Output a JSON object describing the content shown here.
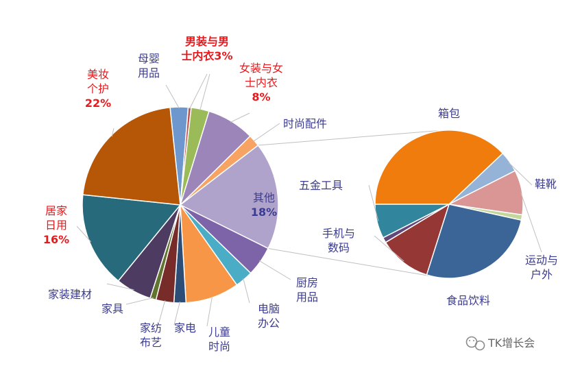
{
  "chart_data": {
    "type": "pie",
    "subtype": "pie-of-pie",
    "main": {
      "slices": [
        {
          "label": "母婴用品",
          "lines": [
            "母婴",
            "用品"
          ],
          "value": 3,
          "color": "#6e97cd"
        },
        {
          "label": "男装与男士内衣3%",
          "lines": [
            "男装与男",
            "士内衣3%"
          ],
          "value": 0.5,
          "color": "#c0504d",
          "highlight": true
        },
        {
          "label": "男装与男士内衣3%",
          "lines": [],
          "value": 3,
          "color": "#9bbb59",
          "highlight": true
        },
        {
          "label": "女装与女士内衣8%",
          "lines": [
            "女装与女",
            "士内衣",
            "8%"
          ],
          "value": 8,
          "color": "#9b85b9",
          "highlight": true
        },
        {
          "label": "时尚配件",
          "lines": [
            "时尚配件"
          ],
          "value": 2,
          "color": "#f7a364"
        },
        {
          "label": "其他18%",
          "lines": [
            "其他",
            "18%"
          ],
          "value": 18,
          "color": "#b0a3cb",
          "inside": true
        },
        {
          "label": "厨房用品",
          "lines": [
            "厨房",
            "用品"
          ],
          "value": 5,
          "color": "#7d63a8"
        },
        {
          "label": "电脑办公",
          "lines": [
            "电脑",
            "办公"
          ],
          "value": 3,
          "color": "#4bacc6"
        },
        {
          "label": "儿童时尚",
          "lines": [
            "儿童",
            "时尚"
          ],
          "value": 9,
          "color": "#f79646"
        },
        {
          "label": "家电",
          "lines": [
            "家电"
          ],
          "value": 2,
          "color": "#2c4d75"
        },
        {
          "label": "家纺布艺",
          "lines": [
            "家纺",
            "布艺"
          ],
          "value": 3,
          "color": "#772c2a"
        },
        {
          "label": "家具",
          "lines": [
            "家具"
          ],
          "value": 1,
          "color": "#5f7530"
        },
        {
          "label": "家装建材",
          "lines": [
            "家装建材"
          ],
          "value": 6,
          "color": "#4d3b62"
        },
        {
          "label": "居家日用16%",
          "lines": [
            "居家",
            "日用",
            "16%"
          ],
          "value": 16,
          "color": "#276a7c",
          "highlight": true
        },
        {
          "label": "美妆个护22%",
          "lines": [
            "美妆",
            "个护",
            "22%"
          ],
          "value": 22,
          "color": "#b65708",
          "highlight": true
        }
      ]
    },
    "secondary": {
      "slices": [
        {
          "label": "箱包",
          "value": 6.6,
          "color": "#f07c0e"
        },
        {
          "label": "鞋靴",
          "value": 0.8,
          "color": "#95b3d7"
        },
        {
          "label": "运动与户外",
          "value": 1.7,
          "color": "#da9694"
        },
        {
          "label": "运动与户外",
          "value": 0.2,
          "color": "#c4d79b"
        },
        {
          "label": "食品饮料",
          "value": 4.6,
          "color": "#3b6597"
        },
        {
          "label": "手机与数码",
          "value": 2.0,
          "color": "#953735"
        },
        {
          "label": "手机与数码",
          "value": 0.2,
          "color": "#60497a"
        },
        {
          "label": "五金工具",
          "value": 1.3,
          "color": "#31859c"
        }
      ],
      "labels": [
        {
          "lines": [
            "箱包"
          ]
        },
        {
          "lines": [
            "鞋靴"
          ]
        },
        {
          "lines": [
            "运动与",
            "户外"
          ]
        },
        {
          "lines": [
            "食品饮料"
          ]
        },
        {
          "lines": [
            "手机与",
            "数码"
          ]
        },
        {
          "lines": [
            "五金工具"
          ]
        }
      ]
    }
  },
  "watermark": {
    "text": "TK增长会",
    "icon": "wechat-icon"
  }
}
